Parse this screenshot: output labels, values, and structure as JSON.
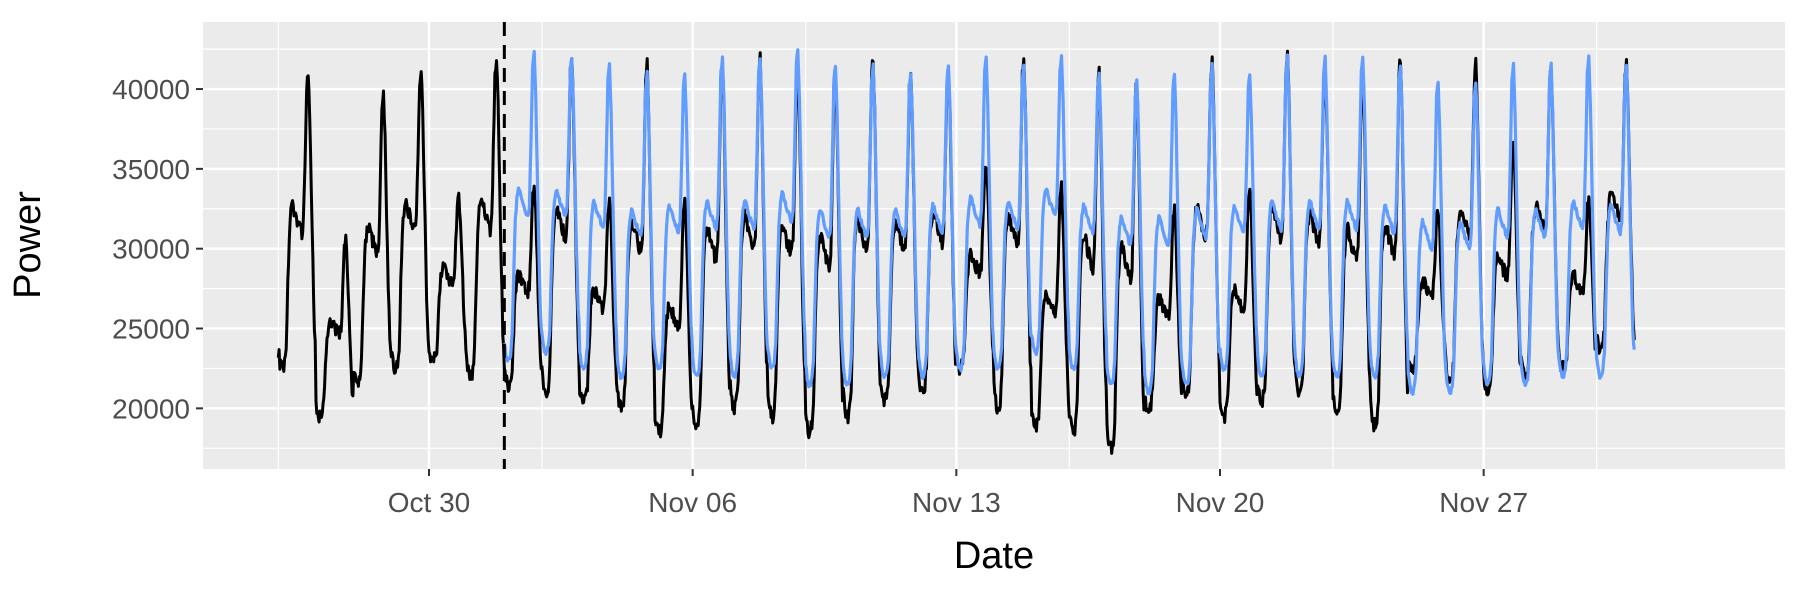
{
  "chart_data": {
    "type": "line",
    "title": "",
    "xlabel": "Date",
    "ylabel": "Power",
    "xlim": [
      "2023-10-24",
      "2023-12-05"
    ],
    "ylim": [
      16200,
      44200
    ],
    "x_ticks": [
      {
        "date": "2023-10-30",
        "label": "Oct 30"
      },
      {
        "date": "2023-11-06",
        "label": "Nov 06"
      },
      {
        "date": "2023-11-13",
        "label": "Nov 13"
      },
      {
        "date": "2023-11-20",
        "label": "Nov 20"
      },
      {
        "date": "2023-11-27",
        "label": "Nov 27"
      }
    ],
    "x_minor_ticks": [
      "2023-10-26",
      "2023-11-02",
      "2023-11-09",
      "2023-11-16",
      "2023-11-23",
      "2023-11-30"
    ],
    "y_ticks": [
      {
        "value": 20000,
        "label": "20000"
      },
      {
        "value": 25000,
        "label": "25000"
      },
      {
        "value": 30000,
        "label": "30000"
      },
      {
        "value": 35000,
        "label": "35000"
      },
      {
        "value": 40000,
        "label": "40000"
      }
    ],
    "y_minor_ticks": [
      17500,
      22500,
      27500,
      32500,
      37500,
      42500
    ],
    "grid": true,
    "legend": "none",
    "vline": {
      "date": "2023-11-01",
      "style": "dashed",
      "color": "#000000"
    },
    "series": [
      {
        "color": "#000000",
        "start": "2023-10-26",
        "end": "2023-12-01",
        "daily_peak": [
          41000,
          30500,
          39500,
          41500,
          33500,
          42000,
          34000,
          42000,
          33000,
          41500,
          33000,
          41500,
          42000,
          41500,
          41000,
          42000,
          41000,
          41500,
          35500,
          42000,
          34000,
          41000,
          40500,
          32500,
          42000,
          34000,
          42500,
          41500,
          41000,
          42000,
          32500,
          41500,
          36500,
          41500,
          33000,
          41500
        ],
        "daily_min": [
          22500,
          19500,
          21500,
          22500,
          23000,
          22000,
          21500,
          21000,
          20500,
          20000,
          18500,
          19000,
          20000,
          19500,
          18500,
          19500,
          20500,
          21000,
          22500,
          20000,
          19000,
          18500,
          17500,
          20000,
          21000,
          19500,
          20500,
          21000,
          19500,
          19000,
          22500,
          21500,
          21000,
          22000,
          22500,
          23500
        ]
      },
      {
        "color": "#619cff",
        "start": "2023-11-01",
        "end": "2023-12-01",
        "daily_peak": [
          42500,
          42000,
          41500,
          41000,
          41000,
          42000,
          42000,
          42500,
          41500,
          41500,
          41000,
          41500,
          42000,
          41500,
          42000,
          41000,
          40500,
          41000,
          41500,
          41000,
          42000,
          42000,
          42000,
          41500,
          40500,
          40500,
          41500,
          41500,
          42000,
          41500,
          41500
        ],
        "daily_min": [
          23000,
          23500,
          22500,
          22000,
          22500,
          22000,
          22000,
          22500,
          21500,
          21500,
          22000,
          22000,
          22500,
          22500,
          23500,
          22500,
          21500,
          21000,
          21500,
          22500,
          22000,
          22000,
          22000,
          22000,
          21000,
          21000,
          21500,
          21500,
          22000,
          22000,
          22500
        ]
      }
    ]
  }
}
